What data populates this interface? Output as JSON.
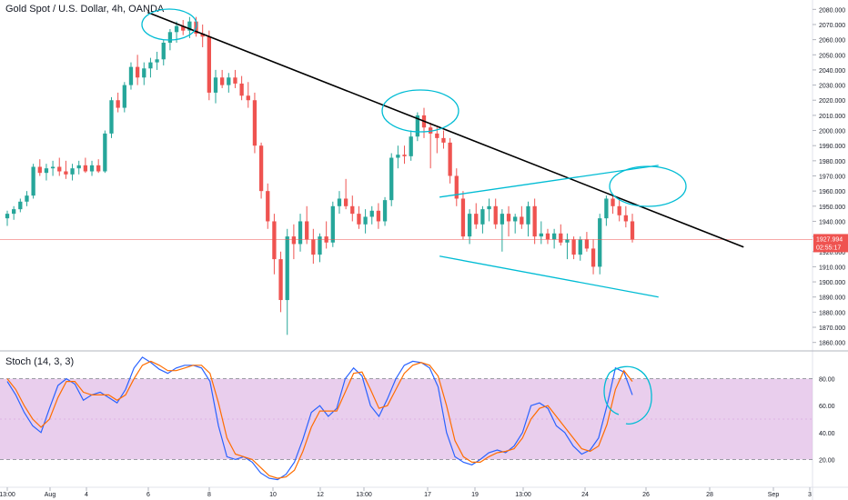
{
  "chart_data": [
    {
      "type": "candlestick",
      "title": "Gold Spot / U.S. Dollar, 4h, OANDA",
      "ylim": [
        1855,
        2085
      ],
      "y_ticks": [
        "1860.000",
        "1870.000",
        "1880.000",
        "1890.000",
        "1900.000",
        "1910.000",
        "1920.000",
        "1930.000",
        "1940.000",
        "1950.000",
        "1960.000",
        "1970.000",
        "1980.000",
        "1990.000",
        "2000.000",
        "2010.000",
        "2020.000",
        "2030.000",
        "2040.000",
        "2050.000",
        "2060.000",
        "2070.000",
        "2080.000"
      ],
      "x_tick_labels": [
        "13:00",
        "Aug",
        "4",
        "6",
        "8",
        "10",
        "12",
        "13:00",
        "17",
        "19",
        "13:00",
        "24",
        "26",
        "28",
        "Sep",
        "3"
      ],
      "last_price": "1927.994",
      "countdown": "02:55:17",
      "colors": {
        "up": "#26a69a",
        "down": "#ef5350",
        "trendline": "#000000",
        "annotation": "#00bcd4",
        "price_line": "#ef5350"
      },
      "candles": [
        [
          1942,
          1947,
          1937,
          1945
        ],
        [
          1945,
          1950,
          1941,
          1948
        ],
        [
          1948,
          1955,
          1946,
          1953
        ],
        [
          1953,
          1960,
          1950,
          1957
        ],
        [
          1957,
          1978,
          1955,
          1976
        ],
        [
          1976,
          1981,
          1970,
          1972
        ],
        [
          1972,
          1978,
          1967,
          1975
        ],
        [
          1975,
          1980,
          1970,
          1976
        ],
        [
          1976,
          1982,
          1970,
          1973
        ],
        [
          1973,
          1980,
          1968,
          1971
        ],
        [
          1971,
          1978,
          1967,
          1975
        ],
        [
          1975,
          1980,
          1971,
          1977
        ],
        [
          1977,
          1982,
          1972,
          1973
        ],
        [
          1973,
          1980,
          1970,
          1977
        ],
        [
          1977,
          1981,
          1972,
          1973
        ],
        [
          1973,
          2000,
          1972,
          1998
        ],
        [
          1998,
          2022,
          1995,
          2020
        ],
        [
          2020,
          2025,
          2012,
          2015
        ],
        [
          2015,
          2032,
          2012,
          2030
        ],
        [
          2030,
          2045,
          2027,
          2042
        ],
        [
          2042,
          2050,
          2030,
          2035
        ],
        [
          2035,
          2045,
          2030,
          2041
        ],
        [
          2041,
          2048,
          2035,
          2045
        ],
        [
          2045,
          2052,
          2040,
          2047
        ],
        [
          2047,
          2060,
          2043,
          2058
        ],
        [
          2058,
          2067,
          2053,
          2065
        ],
        [
          2065,
          2072,
          2058,
          2069
        ],
        [
          2069,
          2073,
          2063,
          2066
        ],
        [
          2066,
          2075,
          2061,
          2072
        ],
        [
          2072,
          2075,
          2062,
          2064
        ],
        [
          2064,
          2070,
          2055,
          2062
        ],
        [
          2062,
          2066,
          2020,
          2025
        ],
        [
          2025,
          2040,
          2018,
          2035
        ],
        [
          2035,
          2040,
          2028,
          2030
        ],
        [
          2030,
          2038,
          2025,
          2035
        ],
        [
          2035,
          2040,
          2028,
          2031
        ],
        [
          2031,
          2036,
          2020,
          2023
        ],
        [
          2023,
          2032,
          2015,
          2020
        ],
        [
          2020,
          2025,
          1985,
          1990
        ],
        [
          1990,
          1992,
          1955,
          1960
        ],
        [
          1960,
          1965,
          1935,
          1940
        ],
        [
          1940,
          1945,
          1905,
          1915
        ],
        [
          1915,
          1920,
          1880,
          1888
        ],
        [
          1888,
          1935,
          1865,
          1930
        ],
        [
          1930,
          1938,
          1915,
          1925
        ],
        [
          1925,
          1945,
          1920,
          1940
        ],
        [
          1940,
          1950,
          1925,
          1928
        ],
        [
          1928,
          1935,
          1912,
          1918
        ],
        [
          1918,
          1932,
          1913,
          1930
        ],
        [
          1930,
          1940,
          1922,
          1926
        ],
        [
          1926,
          1953,
          1923,
          1950
        ],
        [
          1950,
          1960,
          1945,
          1955
        ],
        [
          1955,
          1968,
          1948,
          1950
        ],
        [
          1950,
          1957,
          1940,
          1945
        ],
        [
          1945,
          1950,
          1935,
          1938
        ],
        [
          1938,
          1948,
          1932,
          1943
        ],
        [
          1943,
          1950,
          1938,
          1947
        ],
        [
          1947,
          1952,
          1935,
          1940
        ],
        [
          1940,
          1956,
          1937,
          1954
        ],
        [
          1954,
          1985,
          1950,
          1982
        ],
        [
          1982,
          1990,
          1975,
          1984
        ],
        [
          1984,
          1990,
          1978,
          1983
        ],
        [
          1983,
          2000,
          1980,
          1996
        ],
        [
          1996,
          2012,
          1993,
          2010
        ],
        [
          2010,
          2015,
          1995,
          2002
        ],
        [
          2002,
          2005,
          1975,
          1998
        ],
        [
          1998,
          2002,
          1985,
          1995
        ],
        [
          1995,
          2000,
          1988,
          1992
        ],
        [
          1992,
          1995,
          1965,
          1970
        ],
        [
          1970,
          1975,
          1950,
          1955
        ],
        [
          1955,
          1960,
          1928,
          1930
        ],
        [
          1930,
          1948,
          1925,
          1945
        ],
        [
          1945,
          1952,
          1935,
          1938
        ],
        [
          1938,
          1950,
          1932,
          1948
        ],
        [
          1948,
          1955,
          1940,
          1950
        ],
        [
          1950,
          1955,
          1935,
          1938
        ],
        [
          1938,
          1948,
          1920,
          1945
        ],
        [
          1945,
          1950,
          1930,
          1940
        ],
        [
          1940,
          1945,
          1932,
          1943
        ],
        [
          1943,
          1950,
          1935,
          1938
        ],
        [
          1938,
          1953,
          1930,
          1950
        ],
        [
          1950,
          1955,
          1925,
          1930
        ],
        [
          1930,
          1940,
          1925,
          1932
        ],
        [
          1932,
          1935,
          1925,
          1928
        ],
        [
          1928,
          1935,
          1922,
          1932
        ],
        [
          1932,
          1938,
          1924,
          1926
        ],
        [
          1926,
          1932,
          1915,
          1928
        ],
        [
          1928,
          1930,
          1915,
          1918
        ],
        [
          1918,
          1930,
          1914,
          1928
        ],
        [
          1928,
          1933,
          1920,
          1922
        ],
        [
          1922,
          1928,
          1905,
          1910
        ],
        [
          1910,
          1945,
          1905,
          1942
        ],
        [
          1942,
          1957,
          1937,
          1955
        ],
        [
          1955,
          1958,
          1945,
          1950
        ],
        [
          1950,
          1955,
          1940,
          1944
        ],
        [
          1944,
          1950,
          1936,
          1940
        ],
        [
          1940,
          1945,
          1926,
          1928
        ]
      ],
      "trendline": [
        [
          0.18,
          2078
        ],
        [
          0.915,
          1923
        ]
      ],
      "channel_upper": [
        [
          0.54,
          1956
        ],
        [
          0.81,
          1977
        ]
      ],
      "channel_lower": [
        [
          0.54,
          1917
        ],
        [
          0.81,
          1890
        ]
      ]
    },
    {
      "type": "line",
      "title": "Stoch (14, 3, 3)",
      "ylim": [
        0,
        100
      ],
      "y_ticks": [
        "20.00",
        "40.00",
        "60.00",
        "80.00"
      ],
      "bands": [
        20,
        80
      ],
      "colors": {
        "k": "#2962ff",
        "d": "#ff6d00",
        "band": "#e1bee7"
      },
      "series": [
        {
          "values": [
            78,
            68,
            55,
            45,
            40,
            58,
            75,
            80,
            76,
            64,
            68,
            70,
            66,
            62,
            72,
            88,
            96,
            92,
            87,
            84,
            88,
            90,
            90,
            88,
            78,
            45,
            22,
            20,
            22,
            18,
            10,
            6,
            5,
            9,
            18,
            35,
            55,
            60,
            52,
            58,
            80,
            88,
            82,
            60,
            52,
            65,
            80,
            90,
            93,
            92,
            88,
            74,
            40,
            22,
            18,
            16,
            20,
            25,
            27,
            25,
            30,
            40,
            60,
            62,
            58,
            45,
            40,
            30,
            24,
            27,
            36,
            60,
            88,
            85,
            68
          ]
        },
        {
          "values": [
            80,
            72,
            60,
            50,
            44,
            50,
            66,
            78,
            78,
            70,
            68,
            68,
            68,
            64,
            68,
            80,
            90,
            93,
            90,
            86,
            86,
            88,
            90,
            90,
            84,
            62,
            36,
            24,
            22,
            20,
            14,
            8,
            6,
            7,
            12,
            26,
            44,
            56,
            56,
            56,
            70,
            84,
            85,
            72,
            58,
            60,
            72,
            84,
            90,
            92,
            90,
            82,
            60,
            34,
            22,
            18,
            18,
            22,
            25,
            26,
            28,
            36,
            50,
            58,
            60,
            52,
            44,
            36,
            28,
            26,
            30,
            46,
            72,
            86,
            78
          ]
        }
      ],
      "annotation": "circle-near-recent-peak"
    }
  ]
}
